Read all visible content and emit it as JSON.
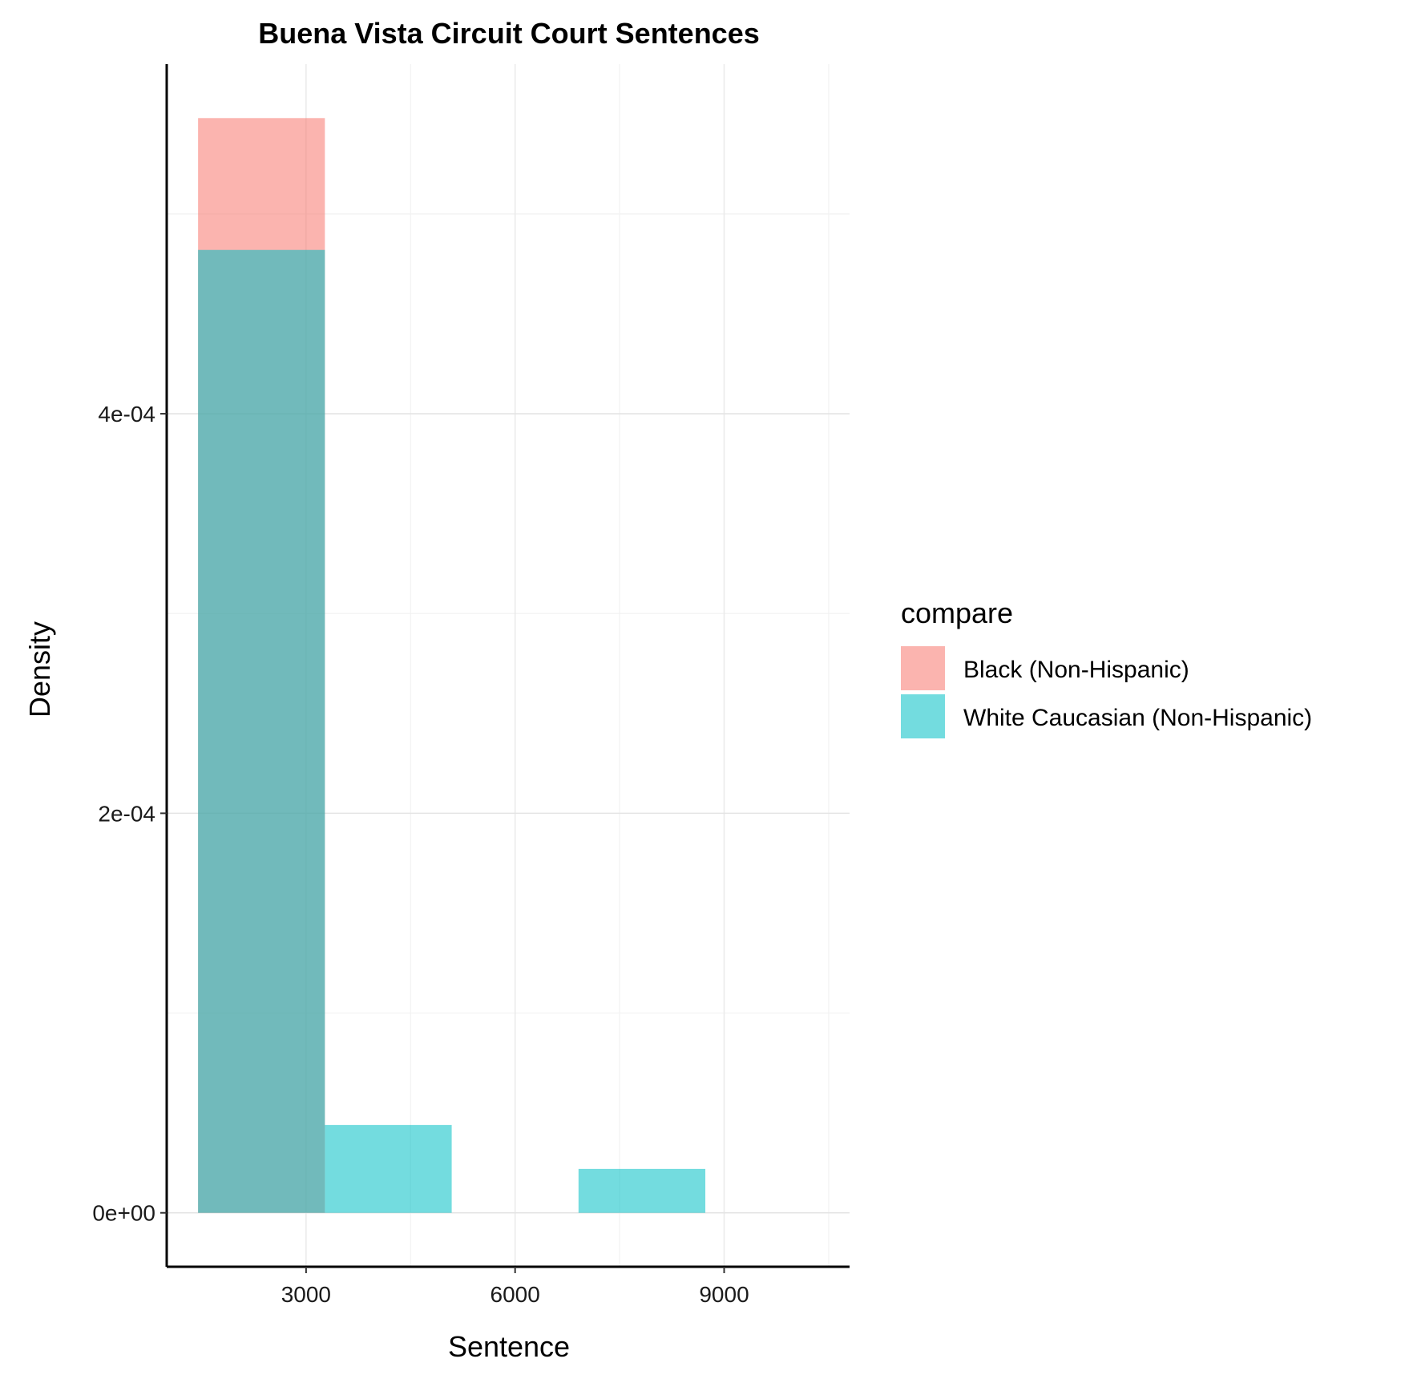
{
  "chart_data": {
    "type": "bar",
    "title": "Buena Vista Circuit Court Sentences",
    "xlabel": "Sentence",
    "ylabel": "Density",
    "xlim": [
      1000,
      10800
    ],
    "ylim": [
      -2.7e-05,
      0.000575
    ],
    "x_ticks": [
      3000,
      6000,
      9000
    ],
    "x_tick_labels": [
      "3000",
      "6000",
      "9000"
    ],
    "x_minor_ticks": [
      4500,
      7500,
      10500
    ],
    "y_ticks": [
      0,
      0.0002,
      0.0004
    ],
    "y_tick_labels": [
      "0e+00",
      "2e-04",
      "4e-04"
    ],
    "y_minor_ticks": [
      0.0001,
      0.0003,
      0.0005
    ],
    "grid": true,
    "legend": {
      "title": "compare",
      "placement": "right"
    },
    "series": [
      {
        "name": "Black (Non-Hispanic)",
        "color": "#F8766D",
        "bins": [
          {
            "x0": 1450,
            "x1": 3270,
            "density": 0.000548
          }
        ]
      },
      {
        "name": "White Caucasian (Non-Hispanic)",
        "color": "#00BFC4",
        "bins": [
          {
            "x0": 1450,
            "x1": 3270,
            "density": 0.000482
          },
          {
            "x0": 3270,
            "x1": 5090,
            "density": 4.4e-05
          },
          {
            "x0": 5090,
            "x1": 6910,
            "density": 0.0
          },
          {
            "x0": 6910,
            "x1": 8730,
            "density": 2.2e-05
          }
        ]
      }
    ]
  }
}
